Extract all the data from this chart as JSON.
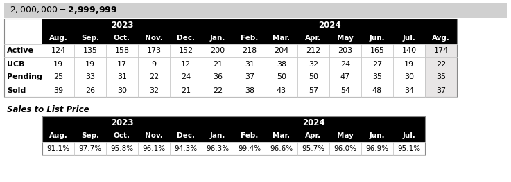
{
  "title": "$2,000,000 - $2,999,999",
  "title_bg": "#d0d0d0",
  "header_bg": "#000000",
  "header_fg": "#ffffff",
  "avg_col_bg": "#e8e6e6",
  "row_bg": "#ffffff",
  "row_labels": [
    "Active",
    "UCB",
    "Pending",
    "Sold"
  ],
  "year_headers": [
    "2023",
    "2024"
  ],
  "col_headers": [
    "Aug.",
    "Sep.",
    "Oct.",
    "Nov.",
    "Dec.",
    "Jan.",
    "Feb.",
    "Mar.",
    "Apr.",
    "May",
    "Jun.",
    "Jul.",
    "Avg."
  ],
  "data_rows": [
    [
      124,
      135,
      158,
      173,
      152,
      200,
      218,
      204,
      212,
      203,
      165,
      140,
      174
    ],
    [
      19,
      19,
      17,
      9,
      12,
      21,
      31,
      38,
      32,
      24,
      27,
      19,
      22
    ],
    [
      25,
      33,
      31,
      22,
      24,
      36,
      37,
      50,
      50,
      47,
      35,
      30,
      35
    ],
    [
      39,
      26,
      30,
      32,
      21,
      22,
      38,
      43,
      57,
      54,
      48,
      34,
      37
    ]
  ],
  "sales_title": "Sales to List Price",
  "sales_col_headers": [
    "Aug.",
    "Sep.",
    "Oct.",
    "Nov.",
    "Dec.",
    "Jan.",
    "Feb.",
    "Mar.",
    "Apr.",
    "May",
    "Jun.",
    "Jul."
  ],
  "sales_data": [
    "91.1%",
    "97.7%",
    "95.8%",
    "96.1%",
    "94.3%",
    "96.3%",
    "99.4%",
    "96.6%",
    "95.7%",
    "96.0%",
    "96.9%",
    "95.1%"
  ]
}
